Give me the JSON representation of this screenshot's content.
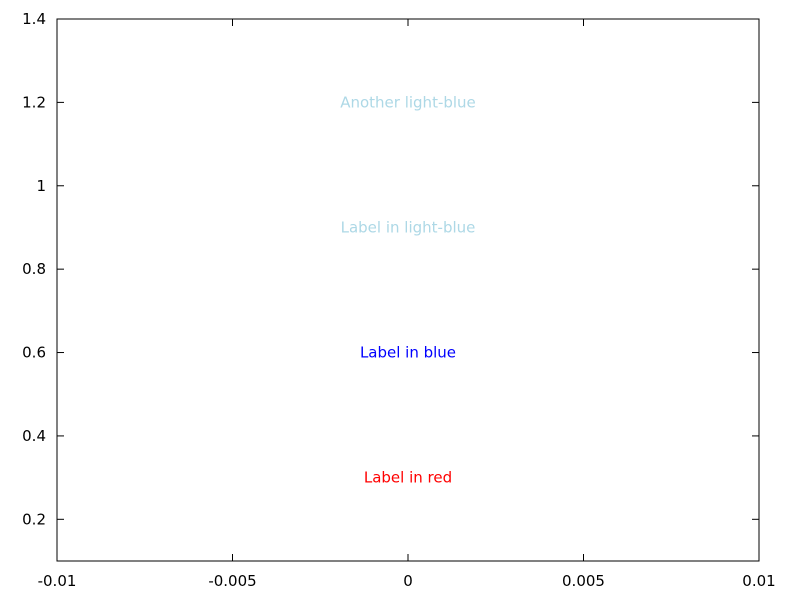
{
  "chart_data": {
    "type": "scatter",
    "title": "",
    "xlabel": "",
    "ylabel": "",
    "xlim": [
      -0.01,
      0.01
    ],
    "ylim": [
      0.1,
      1.4
    ],
    "grid": false,
    "legend": "none",
    "x_ticks": [
      {
        "value": -0.01,
        "label": "-0.01"
      },
      {
        "value": -0.005,
        "label": "-0.005"
      },
      {
        "value": 0,
        "label": "0"
      },
      {
        "value": 0.005,
        "label": "0.005"
      },
      {
        "value": 0.01,
        "label": "0.01"
      }
    ],
    "y_ticks": [
      {
        "value": 0.2,
        "label": "0.2"
      },
      {
        "value": 0.4,
        "label": "0.4"
      },
      {
        "value": 0.6,
        "label": "0.6"
      },
      {
        "value": 0.8,
        "label": "0.8"
      },
      {
        "value": 1.0,
        "label": "1"
      },
      {
        "value": 1.2,
        "label": "1.2"
      },
      {
        "value": 1.4,
        "label": "1.4"
      }
    ],
    "annotations": [
      {
        "text": "Label in red",
        "x": 0,
        "y": 0.3,
        "color": "#ff0000"
      },
      {
        "text": "Label in blue",
        "x": 0,
        "y": 0.6,
        "color": "#0000ff"
      },
      {
        "text": "Label in light-blue",
        "x": 0,
        "y": 0.9,
        "color": "#add8e6"
      },
      {
        "text": "Another light-blue",
        "x": 0,
        "y": 1.2,
        "color": "#add8e6"
      }
    ]
  }
}
